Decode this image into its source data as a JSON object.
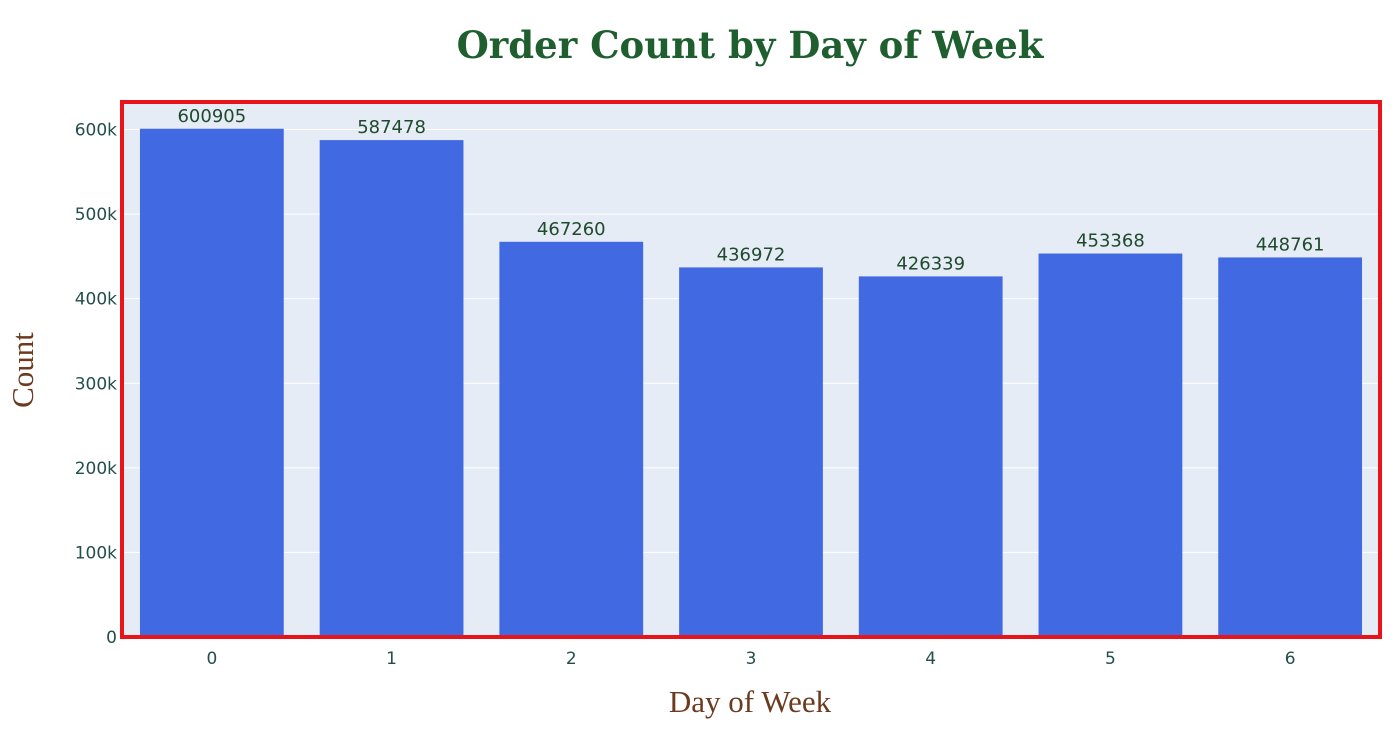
{
  "chart_data": {
    "type": "bar",
    "title": "Order Count by Day of Week",
    "xlabel": "Day of Week",
    "ylabel": "Count",
    "categories": [
      "0",
      "1",
      "2",
      "3",
      "4",
      "5",
      "6"
    ],
    "values": [
      600905,
      587478,
      467260,
      436972,
      426339,
      453368,
      448761
    ],
    "data_labels": [
      "600905",
      "587478",
      "467260",
      "436972",
      "426339",
      "453368",
      "448761"
    ],
    "yticks": [
      0,
      100000,
      200000,
      300000,
      400000,
      500000,
      600000
    ],
    "ytick_labels": [
      "0",
      "100k",
      "200k",
      "300k",
      "400k",
      "500k",
      "600k"
    ],
    "ylim": [
      0,
      632532
    ],
    "grid": true,
    "legend": "none"
  },
  "colors": {
    "bar": "#4169e1",
    "plot_background": "#e5ecf6",
    "gridline": "#ffffff",
    "highlight_border": "#e8141a",
    "title": "#1f5f2f",
    "axis_title": "#6b3a1f",
    "tick_label": "#234f4a",
    "data_label": "#1f4a2c"
  }
}
